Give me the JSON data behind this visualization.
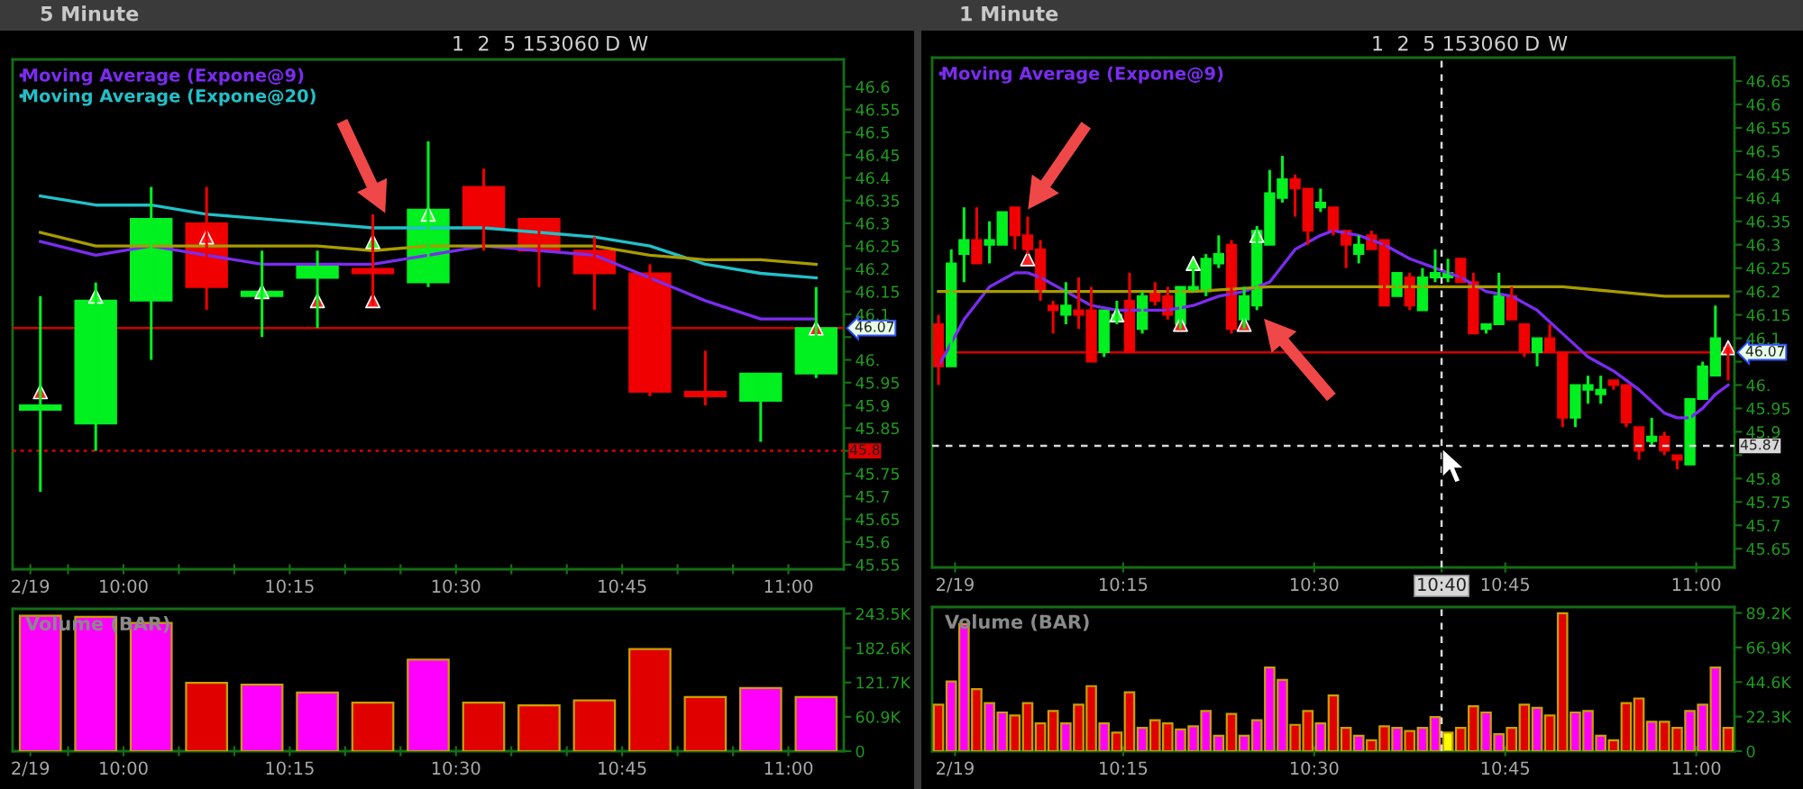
{
  "chart_data": [
    {
      "type": "candlestick",
      "title": "5 Minute",
      "annotations": [
        "1",
        "2",
        "5",
        "15",
        "30",
        "60",
        "D",
        "W"
      ],
      "legend": "top left",
      "x": [
        9.875,
        9.9583,
        10.0417,
        10.125,
        10.2083,
        10.2917,
        10.375,
        10.4583,
        10.5417,
        10.625,
        10.7083,
        10.7917,
        10.875,
        10.9583,
        11.0417
      ],
      "ohlc": [
        [
          45.89,
          46.14,
          45.71,
          45.9
        ],
        [
          45.86,
          46.17,
          45.8,
          46.13
        ],
        [
          46.13,
          46.38,
          46.0,
          46.31
        ],
        [
          46.3,
          46.38,
          46.11,
          46.16
        ],
        [
          46.14,
          46.24,
          46.05,
          46.15
        ],
        [
          46.18,
          46.24,
          46.07,
          46.21
        ],
        [
          46.2,
          46.32,
          46.12,
          46.19
        ],
        [
          46.17,
          46.48,
          46.16,
          46.33
        ],
        [
          46.38,
          46.42,
          46.24,
          46.29
        ],
        [
          46.31,
          46.31,
          46.16,
          46.24
        ],
        [
          46.24,
          46.27,
          46.11,
          46.19
        ],
        [
          46.19,
          46.21,
          45.92,
          45.93
        ],
        [
          45.93,
          46.02,
          45.9,
          45.92
        ],
        [
          45.91,
          45.97,
          45.82,
          45.97
        ],
        [
          45.97,
          46.16,
          45.96,
          46.07
        ]
      ],
      "colors": [
        "#00f020",
        "#00f020",
        "#00f020",
        "#f00000",
        "#00f020",
        "#00f020",
        "#f00000",
        "#00f020",
        "#f00000",
        "#f00000",
        "#f00000",
        "#f00000",
        "#f00000",
        "#00f020",
        "#00f020"
      ],
      "series": [
        {
          "type": "line",
          "name": "Moving Average (Expone@9)",
          "color": "#7b2cf0",
          "x": [
            9.875,
            9.9583,
            10.0417,
            10.125,
            10.2083,
            10.2917,
            10.375,
            10.4583,
            10.5417,
            10.625,
            10.7083,
            10.7917,
            10.875,
            10.9583,
            11.0417
          ],
          "values": [
            46.26,
            46.23,
            46.25,
            46.23,
            46.21,
            46.21,
            46.21,
            46.23,
            46.25,
            46.24,
            46.23,
            46.18,
            46.13,
            46.09,
            46.09
          ]
        },
        {
          "type": "line",
          "name": "Moving Average (Expone@20)",
          "color": "#22c0c8",
          "x": [
            9.875,
            9.9583,
            10.0417,
            10.125,
            10.2083,
            10.2917,
            10.375,
            10.4583,
            10.5417,
            10.625,
            10.7083,
            10.7917,
            10.875,
            10.9583,
            11.0417
          ],
          "values": [
            46.36,
            46.34,
            46.34,
            46.32,
            46.31,
            46.3,
            46.29,
            46.29,
            46.29,
            46.28,
            46.27,
            46.25,
            46.21,
            46.19,
            46.18
          ]
        },
        {
          "type": "line",
          "color": "#a89c00",
          "x": [
            9.875,
            9.9583,
            10.0417,
            10.125,
            10.2083,
            10.2917,
            10.375,
            10.4583,
            10.5417,
            10.625,
            10.7083,
            10.7917,
            10.875,
            10.9583,
            11.0417
          ],
          "values": [
            46.28,
            46.25,
            46.25,
            46.25,
            46.25,
            46.25,
            46.24,
            46.25,
            46.25,
            46.25,
            46.25,
            46.23,
            46.22,
            46.22,
            46.21
          ]
        },
        {
          "type": "scatter",
          "marker": "triangle",
          "color": "#30ff30",
          "x": [
            9.9583,
            10.2083,
            10.375,
            10.4583
          ],
          "values": [
            46.14,
            46.15,
            46.26,
            46.32
          ]
        },
        {
          "type": "scatter",
          "marker": "triangle",
          "color": "#ff2020",
          "x": [
            9.875,
            10.125,
            10.2917,
            10.375,
            11.0417
          ],
          "values": [
            45.93,
            46.27,
            46.13,
            46.13,
            46.07
          ]
        }
      ],
      "xlim": [
        9.8333,
        11.0833
      ],
      "xticks": [
        {
          "value": 9.86,
          "label": "2/19"
        },
        {
          "value": 9.9167,
          "label": null
        },
        {
          "value": 10,
          "label": "10:00"
        },
        {
          "value": 10.0833,
          "label": null
        },
        {
          "value": 10.1667,
          "label": null
        },
        {
          "value": 10.25,
          "label": "10:15"
        },
        {
          "value": 10.3333,
          "label": null
        },
        {
          "value": 10.4167,
          "label": null
        },
        {
          "value": 10.5,
          "label": "10:30"
        },
        {
          "value": 10.5833,
          "label": null
        },
        {
          "value": 10.6667,
          "label": null
        },
        {
          "value": 10.75,
          "label": "10:45"
        },
        {
          "value": 10.8333,
          "label": null
        },
        {
          "value": 10.9167,
          "label": null
        },
        {
          "value": 11,
          "label": "11:00"
        }
      ],
      "ylim": [
        45.54,
        46.66
      ],
      "yticks": [
        45.55,
        45.6,
        45.65,
        45.7,
        45.75,
        {
          "value": 45.8,
          "label": null
        },
        45.85,
        45.9,
        45.95,
        {
          "value": 46,
          "label": "46."
        },
        {
          "value": 46.05,
          "label": null
        },
        46.1,
        46.15,
        46.2,
        46.25,
        46.3,
        46.35,
        46.4,
        46.45,
        46.5,
        46.55,
        46.6
      ],
      "ref_lines": [
        {
          "axis": "y",
          "value": 46.07,
          "label": "46.07",
          "color": "#d00000",
          "line_style": "solid"
        },
        {
          "axis": "y",
          "value": 45.8,
          "label": "45.8",
          "color": "#e00000",
          "line_style": "dotted"
        }
      ]
    },
    {
      "type": "bar",
      "title": "Volume (BAR)",
      "x": [
        9.875,
        9.9583,
        10.0417,
        10.125,
        10.2083,
        10.2917,
        10.375,
        10.4583,
        10.5417,
        10.625,
        10.7083,
        10.7917,
        10.875,
        10.9583,
        11.0417
      ],
      "values": [
        240000,
        238000,
        227000,
        121000,
        118000,
        104000,
        86000,
        162000,
        86000,
        81000,
        90000,
        181000,
        96000,
        112000,
        96000
      ],
      "colors": [
        "#ff00ff",
        "#ff00ff",
        "#ff00ff",
        "#e00000",
        "#ff00ff",
        "#ff00ff",
        "#e00000",
        "#ff00ff",
        "#e00000",
        "#e00000",
        "#e00000",
        "#e00000",
        "#e00000",
        "#ff00ff",
        "#ff00ff"
      ],
      "xlim": [
        9.8333,
        11.0833
      ],
      "xticks": [
        {
          "value": 9.86,
          "label": "2/19"
        },
        {
          "value": 9.9167,
          "label": null
        },
        {
          "value": 10,
          "label": "10:00"
        },
        {
          "value": 10.0833,
          "label": null
        },
        {
          "value": 10.1667,
          "label": null
        },
        {
          "value": 10.25,
          "label": "10:15"
        },
        {
          "value": 10.3333,
          "label": null
        },
        {
          "value": 10.4167,
          "label": null
        },
        {
          "value": 10.5,
          "label": "10:30"
        },
        {
          "value": 10.5833,
          "label": null
        },
        {
          "value": 10.6667,
          "label": null
        },
        {
          "value": 10.75,
          "label": "10:45"
        },
        {
          "value": 10.8333,
          "label": null
        },
        {
          "value": 10.9167,
          "label": null
        },
        {
          "value": 11,
          "label": "11:00"
        }
      ],
      "ylim": [
        0,
        252000
      ],
      "yticks": [
        0,
        {
          "value": 60900,
          "label": "60.9K"
        },
        {
          "value": 121700,
          "label": "121.7K"
        },
        {
          "value": 182600,
          "label": "182.6K"
        },
        {
          "value": 243500,
          "label": "243.5K"
        }
      ]
    },
    {
      "type": "candlestick",
      "title": "1 Minute",
      "annotations": [
        "1",
        "2",
        "5",
        "15",
        "30",
        "60",
        "D",
        "W"
      ],
      "legend": "top left",
      "x": [
        10.0083,
        10.025,
        10.0417,
        10.0583,
        10.075,
        10.0917,
        10.1083,
        10.125,
        10.1417,
        10.1583,
        10.175,
        10.1917,
        10.2083,
        10.225,
        10.2417,
        10.2583,
        10.275,
        10.2917,
        10.3083,
        10.325,
        10.3417,
        10.3583,
        10.375,
        10.3917,
        10.4083,
        10.425,
        10.4417,
        10.4583,
        10.475,
        10.4917,
        10.5083,
        10.525,
        10.5417,
        10.5583,
        10.575,
        10.5917,
        10.6083,
        10.625,
        10.6417,
        10.6583,
        10.675,
        10.6917,
        10.7083,
        10.725,
        10.7417,
        10.7583,
        10.775,
        10.7917,
        10.8083,
        10.825,
        10.8417,
        10.8583,
        10.875,
        10.8917,
        10.9083,
        10.925,
        10.9417,
        10.9583,
        10.975,
        10.9917,
        11.0083,
        11.025,
        11.0417
      ],
      "ohlc": [
        [
          46.13,
          46.15,
          46.0,
          46.04
        ],
        [
          46.04,
          46.29,
          46.04,
          46.26
        ],
        [
          46.28,
          46.38,
          46.22,
          46.31
        ],
        [
          46.31,
          46.38,
          46.26,
          46.26
        ],
        [
          46.3,
          46.35,
          46.26,
          46.31
        ],
        [
          46.3,
          46.37,
          46.3,
          46.37
        ],
        [
          46.38,
          46.38,
          46.29,
          46.32
        ],
        [
          46.32,
          46.36,
          46.28,
          46.29
        ],
        [
          46.29,
          46.31,
          46.18,
          46.2
        ],
        [
          46.17,
          46.18,
          46.11,
          46.16
        ],
        [
          46.15,
          46.22,
          46.13,
          46.17
        ],
        [
          46.16,
          46.23,
          46.12,
          46.15
        ],
        [
          46.16,
          46.21,
          46.05,
          46.05
        ],
        [
          46.07,
          46.16,
          46.06,
          46.16
        ],
        [
          46.14,
          46.18,
          46.13,
          46.15
        ],
        [
          46.18,
          46.24,
          46.07,
          46.07
        ],
        [
          46.12,
          46.2,
          46.11,
          46.19
        ],
        [
          46.2,
          46.22,
          46.17,
          46.18
        ],
        [
          46.19,
          46.21,
          46.14,
          46.15
        ],
        [
          46.13,
          46.21,
          46.12,
          46.21
        ],
        [
          46.2,
          46.25,
          46.2,
          46.21
        ],
        [
          46.2,
          46.28,
          46.19,
          46.27
        ],
        [
          46.26,
          46.32,
          46.25,
          46.28
        ],
        [
          46.3,
          46.31,
          46.11,
          46.12
        ],
        [
          46.14,
          46.21,
          46.12,
          46.19
        ],
        [
          46.17,
          46.34,
          46.16,
          46.33
        ],
        [
          46.3,
          46.46,
          46.3,
          46.41
        ],
        [
          46.4,
          46.49,
          46.39,
          46.44
        ],
        [
          46.44,
          46.45,
          46.36,
          46.42
        ],
        [
          46.42,
          46.42,
          46.3,
          46.33
        ],
        [
          46.38,
          46.42,
          46.37,
          46.39
        ],
        [
          46.38,
          46.38,
          46.32,
          46.33
        ],
        [
          46.33,
          46.33,
          46.25,
          46.3
        ],
        [
          46.28,
          46.32,
          46.26,
          46.3
        ],
        [
          46.32,
          46.33,
          46.29,
          46.29
        ],
        [
          46.31,
          46.31,
          46.17,
          46.17
        ],
        [
          46.19,
          46.24,
          46.19,
          46.24
        ],
        [
          46.23,
          46.24,
          46.16,
          46.17
        ],
        [
          46.16,
          46.25,
          46.16,
          46.23
        ],
        [
          46.23,
          46.29,
          46.22,
          46.24
        ],
        [
          46.23,
          46.27,
          46.22,
          46.24
        ],
        [
          46.27,
          46.27,
          46.22,
          46.22
        ],
        [
          46.22,
          46.24,
          46.11,
          46.11
        ],
        [
          46.12,
          46.13,
          46.11,
          46.13
        ],
        [
          46.13,
          46.24,
          46.13,
          46.19
        ],
        [
          46.19,
          46.21,
          46.14,
          46.14
        ],
        [
          46.13,
          46.13,
          46.06,
          46.07
        ],
        [
          46.07,
          46.1,
          46.04,
          46.1
        ],
        [
          46.1,
          46.13,
          46.07,
          46.07
        ],
        [
          46.07,
          46.07,
          45.91,
          45.93
        ],
        [
          45.93,
          46.0,
          45.91,
          46.0
        ],
        [
          45.99,
          46.02,
          45.96,
          46.0
        ],
        [
          45.98,
          46.02,
          45.96,
          45.99
        ],
        [
          46.01,
          46.01,
          45.99,
          46.0
        ],
        [
          46.0,
          46.0,
          45.91,
          45.92
        ],
        [
          45.91,
          45.91,
          45.84,
          45.86
        ],
        [
          45.88,
          45.93,
          45.87,
          45.89
        ],
        [
          45.89,
          45.9,
          45.85,
          45.86
        ],
        [
          45.85,
          45.85,
          45.82,
          45.84
        ],
        [
          45.83,
          45.97,
          45.83,
          45.97
        ],
        [
          45.97,
          46.05,
          45.97,
          46.04
        ],
        [
          46.02,
          46.17,
          46.02,
          46.1
        ],
        [
          46.08,
          46.08,
          46.01,
          46.07
        ]
      ],
      "colors": [
        "#f00000",
        "#00f020",
        "#00f020",
        "#f00000",
        "#00f020",
        "#00f020",
        "#f00000",
        "#f00000",
        "#f00000",
        "#f00000",
        "#00f020",
        "#f00000",
        "#f00000",
        "#00f020",
        "#00f020",
        "#f00000",
        "#00f020",
        "#f00000",
        "#f00000",
        "#00f020",
        "#00f020",
        "#00f020",
        "#00f020",
        "#f00000",
        "#00f020",
        "#00f020",
        "#00f020",
        "#00f020",
        "#f00000",
        "#f00000",
        "#00f020",
        "#f00000",
        "#f00000",
        "#00f020",
        "#f00000",
        "#f00000",
        "#00f020",
        "#f00000",
        "#00f020",
        "#00f020",
        "#00f020",
        "#f00000",
        "#f00000",
        "#00f020",
        "#00f020",
        "#f00000",
        "#f00000",
        "#00f020",
        "#f00000",
        "#f00000",
        "#00f020",
        "#00f020",
        "#00f020",
        "#f00000",
        "#f00000",
        "#f00000",
        "#00f020",
        "#f00000",
        "#f00000",
        "#00f020",
        "#00f020",
        "#00f020",
        "#f00000"
      ],
      "series": [
        {
          "type": "line",
          "name": "Moving Average (Expone@9)",
          "color": "#7b2cf0",
          "x": [
            10.0083,
            10.0417,
            10.075,
            10.1083,
            10.125,
            10.1417,
            10.175,
            10.2083,
            10.2417,
            10.275,
            10.3083,
            10.3417,
            10.375,
            10.4083,
            10.4417,
            10.475,
            10.5083,
            10.525,
            10.5583,
            10.5917,
            10.625,
            10.6583,
            10.6917,
            10.725,
            10.7583,
            10.7917,
            10.825,
            10.8583,
            10.8917,
            10.925,
            10.9583,
            10.975,
            10.9917,
            11.0083,
            11.025,
            11.0417
          ],
          "values": [
            46.04,
            46.14,
            46.21,
            46.24,
            46.24,
            46.23,
            46.2,
            46.17,
            46.16,
            46.16,
            46.16,
            46.17,
            46.19,
            46.2,
            46.22,
            46.29,
            46.32,
            46.33,
            46.32,
            46.3,
            46.27,
            46.25,
            46.23,
            46.2,
            46.19,
            46.16,
            46.11,
            46.06,
            46.03,
            45.99,
            45.94,
            45.93,
            45.93,
            45.95,
            45.98,
            46.0
          ]
        },
        {
          "type": "line",
          "color": "#a89c00",
          "x": [
            10.0083,
            10.175,
            10.3417,
            10.4417,
            10.5083,
            10.675,
            10.7583,
            10.825,
            10.8917,
            10.9583,
            11.0417
          ],
          "values": [
            46.2,
            46.2,
            46.2,
            46.21,
            46.21,
            46.21,
            46.21,
            46.21,
            46.2,
            46.19,
            46.19
          ]
        },
        {
          "type": "scatter",
          "marker": "triangle",
          "color": "#30ff30",
          "x": [
            10.2417,
            10.3417,
            10.425
          ],
          "values": [
            46.15,
            46.26,
            46.32
          ]
        },
        {
          "type": "scatter",
          "marker": "triangle",
          "color": "#ff2020",
          "x": [
            10.125,
            10.325,
            10.4083,
            11.0417
          ],
          "values": [
            46.27,
            46.13,
            46.13,
            46.08
          ]
        }
      ],
      "xlim": [
        10.0,
        11.05
      ],
      "xticks": [
        {
          "value": 10.03,
          "label": "2/19"
        },
        {
          "value": 10.25,
          "label": "10:15"
        },
        {
          "value": 10.5,
          "label": "10:30"
        },
        {
          "value": 10.666667,
          "label": "10:40"
        },
        {
          "value": 10.75,
          "label": "10:45"
        },
        {
          "value": 11,
          "label": "11:00"
        }
      ],
      "ylim": [
        45.61,
        46.7
      ],
      "yticks": [
        45.65,
        45.7,
        45.75,
        45.8,
        {
          "value": 45.85,
          "label": null
        },
        45.9,
        45.95,
        {
          "value": 46,
          "label": "46."
        },
        {
          "value": 46.05,
          "label": null
        },
        46.1,
        46.15,
        46.2,
        46.25,
        46.3,
        46.35,
        46.4,
        46.45,
        46.5,
        46.55,
        46.6,
        46.65
      ],
      "ref_lines": [
        {
          "axis": "y",
          "value": 46.07,
          "label": "46.07",
          "color": "#d00000",
          "line_style": "solid"
        },
        {
          "axis": "y",
          "value": 45.87,
          "label": "45.87",
          "color": "#d8d8d8",
          "line_style": "dashed"
        },
        {
          "axis": "x",
          "value": 10.666667,
          "color": "#d8d8d8",
          "line_style": "dashed"
        }
      ]
    },
    {
      "type": "bar",
      "title": "Volume (BAR)",
      "x": [
        10.0083,
        10.025,
        10.0417,
        10.0583,
        10.075,
        10.0917,
        10.1083,
        10.125,
        10.1417,
        10.1583,
        10.175,
        10.1917,
        10.2083,
        10.225,
        10.2417,
        10.2583,
        10.275,
        10.2917,
        10.3083,
        10.325,
        10.3417,
        10.3583,
        10.375,
        10.3917,
        10.4083,
        10.425,
        10.4417,
        10.4583,
        10.475,
        10.4917,
        10.5083,
        10.525,
        10.5417,
        10.5583,
        10.575,
        10.5917,
        10.6083,
        10.625,
        10.6417,
        10.6583,
        10.675,
        10.6917,
        10.7083,
        10.725,
        10.7417,
        10.7583,
        10.775,
        10.7917,
        10.8083,
        10.825,
        10.8417,
        10.8583,
        10.875,
        10.8917,
        10.9083,
        10.925,
        10.9417,
        10.9583,
        10.975,
        10.9917,
        11.0083,
        11.025,
        11.0417
      ],
      "values": [
        30000,
        45000,
        82000,
        40000,
        31000,
        25000,
        23000,
        31000,
        18000,
        26000,
        18000,
        30000,
        42000,
        18000,
        12000,
        38000,
        15000,
        20000,
        18000,
        14000,
        16000,
        26000,
        10000,
        24000,
        10000,
        20000,
        54000,
        46000,
        17000,
        26000,
        18000,
        36000,
        15000,
        10000,
        7000,
        16000,
        15000,
        13000,
        15000,
        22000,
        12000,
        15000,
        29000,
        25000,
        11000,
        15000,
        30000,
        28000,
        23000,
        89000,
        25000,
        26000,
        10000,
        7000,
        31000,
        34000,
        19000,
        19000,
        15000,
        26000,
        30000,
        54000,
        15000
      ],
      "colors": [
        "#e00000",
        "#ff00ff",
        "#ff00ff",
        "#e00000",
        "#ff00ff",
        "#ff00ff",
        "#e00000",
        "#e00000",
        "#e00000",
        "#e00000",
        "#ff00ff",
        "#e00000",
        "#e00000",
        "#ff00ff",
        "#e00000",
        "#e00000",
        "#ff00ff",
        "#e00000",
        "#e00000",
        "#ff00ff",
        "#ff00ff",
        "#ff00ff",
        "#ff00ff",
        "#e00000",
        "#ff00ff",
        "#ff00ff",
        "#ff00ff",
        "#ff00ff",
        "#e00000",
        "#e00000",
        "#ff00ff",
        "#e00000",
        "#e00000",
        "#ff00ff",
        "#e00000",
        "#e00000",
        "#ff00ff",
        "#e00000",
        "#ff00ff",
        "#ff00ff",
        "#ffff00",
        "#e00000",
        "#e00000",
        "#ff00ff",
        "#ff00ff",
        "#e00000",
        "#e00000",
        "#ff00ff",
        "#e00000",
        "#e00000",
        "#ff00ff",
        "#ff00ff",
        "#ff00ff",
        "#e00000",
        "#e00000",
        "#e00000",
        "#ff00ff",
        "#e00000",
        "#e00000",
        "#ff00ff",
        "#ff00ff",
        "#ff00ff",
        "#e00000"
      ],
      "xlim": [
        10.0,
        11.05
      ],
      "xticks": [
        {
          "value": 10.03,
          "label": "2/19"
        },
        {
          "value": 10.25,
          "label": "10:15"
        },
        {
          "value": 10.5,
          "label": "10:30"
        },
        {
          "value": 10.75,
          "label": "10:45"
        },
        {
          "value": 11,
          "label": "11:00"
        }
      ],
      "ylim": [
        0,
        93000
      ],
      "yticks": [
        0,
        {
          "value": 22300,
          "label": "22.3K"
        },
        {
          "value": 44600,
          "label": "44.6K"
        },
        {
          "value": 66900,
          "label": "66.9K"
        },
        {
          "value": 89200,
          "label": "89.2K"
        }
      ],
      "ref_lines": [
        {
          "axis": "x",
          "value": 10.666667,
          "color": "#d8d8d8",
          "line_style": "dashed"
        }
      ]
    }
  ]
}
